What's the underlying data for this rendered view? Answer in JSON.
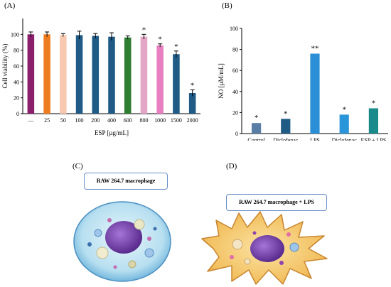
{
  "panels": {
    "a_label": "(A)",
    "b_label": "(B)",
    "c_label": "(C)",
    "d_label": "(D)"
  },
  "chart_data": [
    {
      "type": "bar",
      "panel": "A",
      "ylabel": "Cell viability (%)",
      "xlabel": "ESP [µg/mL]",
      "ylim": [
        0,
        120
      ],
      "yticks": [
        0,
        20,
        40,
        60,
        80,
        100
      ],
      "categories": [
        "—",
        "25",
        "50",
        "100",
        "200",
        "400",
        "600",
        "800",
        "1000",
        "1500",
        "2000"
      ],
      "values": [
        100,
        100,
        99,
        99,
        98,
        97,
        96,
        97,
        86,
        75,
        26
      ],
      "errors": [
        3,
        3,
        2,
        5,
        3,
        5,
        2,
        3,
        2,
        4,
        4
      ],
      "significance": [
        "",
        "",
        "",
        "",
        "",
        "",
        "",
        "*",
        "*",
        "*",
        "*"
      ],
      "colors": [
        "#8b1f6c",
        "#ef7d1f",
        "#f8c9b1",
        "#1f5b85",
        "#1f5b85",
        "#1f5b85",
        "#2e7d32",
        "#e4a6c6",
        "#e77fc0",
        "#1f5b85",
        "#1f5b85"
      ],
      "grid": false
    },
    {
      "type": "bar",
      "panel": "B",
      "ylabel": "NO [µM/mL]",
      "ylim": [
        0,
        100
      ],
      "yticks": [
        0,
        20,
        40,
        60,
        80,
        100
      ],
      "categories": [
        "Control",
        "Diclofenac",
        "LPS",
        "Diclofenac\n+ LPS",
        "ESP + LPS"
      ],
      "values": [
        10,
        14,
        76,
        18,
        24
      ],
      "significance": [
        "*",
        "*",
        "**",
        "*",
        "*"
      ],
      "colors": [
        "#5a7da6",
        "#1f5b85",
        "#2a8fd6",
        "#2a95d8",
        "#1a8a8a"
      ],
      "grid": false
    }
  ],
  "illustrations": {
    "c_box": "RAW 264.7 macrophage",
    "d_box": "RAW 264.7 macrophage + LPS"
  }
}
